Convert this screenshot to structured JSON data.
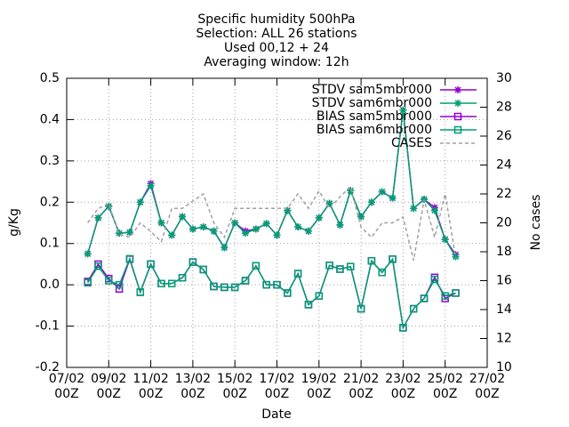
{
  "chart_data": {
    "type": "line",
    "title": [
      "Specific humidity 500hPa",
      "Selection: ALL      26 stations",
      "Used 00,12 + 24",
      "Averaging window: 12h"
    ],
    "xlabel": "Date",
    "ylabel": "g/Kg",
    "y2label": "No cases",
    "x": [
      "08/02 00Z",
      "08/02 12Z",
      "09/02 00Z",
      "09/02 12Z",
      "10/02 00Z",
      "10/02 12Z",
      "11/02 00Z",
      "11/02 12Z",
      "12/02 00Z",
      "12/02 12Z",
      "13/02 00Z",
      "13/02 12Z",
      "14/02 00Z",
      "14/02 12Z",
      "15/02 00Z",
      "15/02 12Z",
      "16/02 00Z",
      "16/02 12Z",
      "17/02 00Z",
      "17/02 12Z",
      "18/02 00Z",
      "18/02 12Z",
      "19/02 00Z",
      "19/02 12Z",
      "20/02 00Z",
      "20/02 12Z",
      "21/02 00Z",
      "21/02 12Z",
      "22/02 00Z",
      "22/02 12Z",
      "23/02 00Z",
      "23/02 12Z",
      "24/02 00Z",
      "24/02 12Z",
      "25/02 00Z",
      "25/02 12Z"
    ],
    "xlim": [
      "07/02 00Z",
      "27/02 00Z"
    ],
    "xticks": [
      "07/02 00Z",
      "09/02 00Z",
      "11/02 00Z",
      "13/02 00Z",
      "15/02 00Z",
      "17/02 00Z",
      "19/02 00Z",
      "21/02 00Z",
      "23/02 00Z",
      "25/02 00Z",
      "27/02 00Z"
    ],
    "ylim": [
      -0.2,
      0.5
    ],
    "yticks": [
      -0.2,
      -0.1,
      {
        "value": 0,
        "label": "0.0"
      },
      0.1,
      0.2,
      0.3,
      0.4,
      0.5
    ],
    "y2lim": [
      10,
      30
    ],
    "y2ticks": [
      10,
      12,
      14,
      16,
      18,
      20,
      22,
      24,
      26,
      28,
      30
    ],
    "grid": true,
    "legend": "top-right",
    "series": [
      {
        "name": "STDV sam5mbr000",
        "color": "#9400d3",
        "marker": "asterisk",
        "values": [
          0.075,
          0.162,
          0.19,
          0.125,
          0.127,
          0.2,
          0.245,
          0.15,
          0.12,
          0.165,
          0.135,
          0.14,
          0.13,
          0.09,
          0.15,
          0.13,
          0.135,
          0.148,
          0.12,
          0.18,
          0.14,
          0.13,
          0.162,
          0.197,
          0.145,
          0.228,
          0.165,
          0.2,
          0.225,
          0.21,
          0.423,
          0.185,
          0.207,
          0.187,
          0.11,
          0.073
        ]
      },
      {
        "name": "STDV sam6mbr000",
        "color": "#009e73",
        "marker": "asterisk",
        "values": [
          0.075,
          0.162,
          0.19,
          0.125,
          0.127,
          0.2,
          0.24,
          0.15,
          0.12,
          0.165,
          0.135,
          0.14,
          0.13,
          0.09,
          0.15,
          0.125,
          0.135,
          0.148,
          0.12,
          0.18,
          0.14,
          0.13,
          0.162,
          0.197,
          0.145,
          0.228,
          0.165,
          0.2,
          0.225,
          0.21,
          0.423,
          0.185,
          0.207,
          0.18,
          0.11,
          0.068
        ]
      },
      {
        "name": "BIAS sam5mbr000",
        "color": "#9400d3",
        "marker": "square",
        "values": [
          0.008,
          0.05,
          0.015,
          -0.01,
          0.062,
          -0.018,
          0.05,
          0.003,
          0.003,
          0.017,
          0.055,
          0.037,
          -0.004,
          -0.006,
          -0.006,
          0.01,
          0.046,
          0,
          0,
          -0.02,
          0.027,
          -0.048,
          -0.027,
          0.047,
          0.038,
          0.044,
          -0.058,
          0.058,
          0.03,
          0.062,
          -0.104,
          -0.058,
          -0.033,
          0.018,
          -0.033,
          -0.02
        ]
      },
      {
        "name": "BIAS sam6mbr000",
        "color": "#009e73",
        "marker": "square",
        "values": [
          0.005,
          0.045,
          0.01,
          0,
          0.063,
          -0.018,
          0.05,
          0.003,
          0.003,
          0.017,
          0.055,
          0.037,
          -0.004,
          -0.006,
          -0.006,
          0.01,
          0.046,
          0,
          0,
          -0.02,
          0.027,
          -0.048,
          -0.027,
          0.047,
          0.038,
          0.044,
          -0.058,
          0.058,
          0.03,
          0.062,
          -0.104,
          -0.058,
          -0.033,
          0.013,
          -0.027,
          -0.02
        ]
      },
      {
        "name": "CASES",
        "color": "#a0a0a0",
        "dashed": true,
        "axis": "y2",
        "values": [
          20,
          21,
          21.3,
          19.2,
          19,
          20,
          19.4,
          18.7,
          21,
          21,
          21.5,
          22,
          20,
          19,
          21,
          21,
          21,
          21,
          21,
          21,
          22,
          21,
          22.2,
          21,
          21.8,
          22.5,
          19.7,
          19,
          20,
          20,
          20.4,
          17.4,
          21.6,
          19,
          22,
          17.6
        ]
      }
    ]
  }
}
